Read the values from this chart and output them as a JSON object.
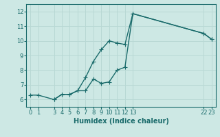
{
  "xlabel": "Humidex (Indice chaleur)",
  "ylabel": "",
  "bg_color": "#cde8e4",
  "line_color": "#1a6b6b",
  "grid_color": "#b8d8d4",
  "xlim": [
    -0.5,
    23.5
  ],
  "ylim": [
    5.5,
    12.5
  ],
  "xticks": [
    0,
    1,
    3,
    4,
    5,
    6,
    7,
    8,
    9,
    10,
    11,
    12,
    13,
    22,
    23
  ],
  "yticks": [
    6,
    7,
    8,
    9,
    10,
    11,
    12
  ],
  "line1_x": [
    0,
    1,
    3,
    4,
    5,
    6,
    7,
    8,
    9,
    10,
    11,
    12,
    13,
    22,
    23
  ],
  "line1_y": [
    6.3,
    6.3,
    6.0,
    6.35,
    6.35,
    6.6,
    7.5,
    8.6,
    9.4,
    10.0,
    9.85,
    9.75,
    11.85,
    10.5,
    10.1
  ],
  "line2_x": [
    3,
    4,
    5,
    6,
    7,
    8,
    9,
    10,
    11,
    12,
    13,
    22,
    23
  ],
  "line2_y": [
    6.0,
    6.35,
    6.35,
    6.6,
    6.6,
    7.4,
    7.1,
    7.2,
    8.0,
    8.2,
    11.85,
    10.5,
    10.1
  ],
  "marker": "+",
  "markersize": 4,
  "linewidth": 1.0
}
